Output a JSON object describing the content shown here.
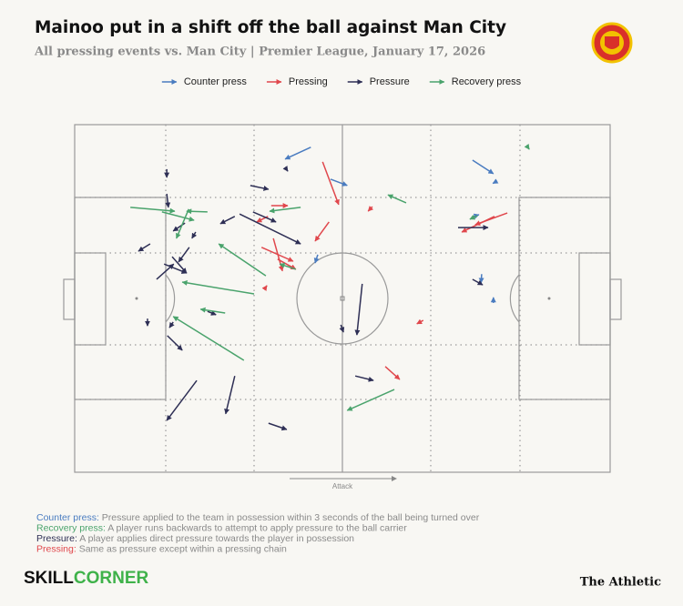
{
  "chart_data": {
    "type": "arrow-map",
    "title": "Mainoo put in a shift off the ball against Man City",
    "subtitle": "All pressing events vs. Man City | Premier League, January 17, 2026",
    "xlim": [
      0,
      100
    ],
    "ylim": [
      0,
      100
    ],
    "attack_label": "Attack",
    "series": [
      {
        "name": "Counter press",
        "color": "#4a7cc0",
        "events": [
          [
            44.1,
            6.5,
            39.3,
            9.9
          ],
          [
            74.3,
            10.2,
            78.2,
            14.1
          ],
          [
            78.9,
            16.2,
            78.1,
            16.9
          ],
          [
            47.8,
            15.7,
            50.9,
            17.5
          ],
          [
            45.4,
            37.4,
            44.9,
            39.8
          ],
          [
            76.0,
            43.0,
            75.9,
            45.5
          ],
          [
            78.2,
            51.3,
            78.2,
            49.7
          ],
          [
            74.5,
            26.4,
            75.5,
            25.9
          ]
        ]
      },
      {
        "name": "Pressing",
        "color": "#e0474c",
        "events": [
          [
            46.3,
            10.7,
            49.3,
            23.0
          ],
          [
            36.7,
            23.3,
            39.8,
            23.3
          ],
          [
            36.1,
            26.4,
            34.0,
            28.0
          ],
          [
            47.5,
            28.0,
            44.9,
            33.5
          ],
          [
            55.6,
            23.6,
            54.8,
            24.9
          ],
          [
            34.9,
            35.3,
            40.8,
            39.3
          ],
          [
            37.1,
            32.7,
            38.8,
            42.1
          ],
          [
            37.9,
            38.7,
            41.3,
            41.6
          ],
          [
            35.4,
            47.4,
            35.9,
            46.3
          ],
          [
            65.1,
            56.3,
            63.9,
            57.3
          ],
          [
            58.0,
            69.6,
            60.7,
            73.3
          ],
          [
            80.8,
            25.4,
            74.8,
            28.8
          ],
          [
            78.4,
            26.4,
            72.3,
            30.9
          ]
        ]
      },
      {
        "name": "Pressure",
        "color": "#2e2f55",
        "events": [
          [
            17.2,
            12.8,
            17.2,
            15.2
          ],
          [
            32.8,
            17.5,
            36.2,
            18.6
          ],
          [
            39.3,
            12.3,
            39.8,
            13.4
          ],
          [
            17.2,
            19.9,
            17.5,
            23.8
          ],
          [
            30.8,
            25.7,
            42.2,
            34.3
          ],
          [
            33.3,
            25.1,
            37.6,
            28.0
          ],
          [
            29.9,
            26.4,
            27.2,
            28.5
          ],
          [
            20.6,
            28.3,
            18.4,
            30.6
          ],
          [
            14.1,
            34.3,
            11.9,
            36.4
          ],
          [
            21.4,
            35.3,
            19.4,
            39.5
          ],
          [
            22.6,
            30.9,
            21.9,
            32.7
          ],
          [
            18.2,
            38.0,
            20.9,
            42.7
          ],
          [
            16.7,
            40.1,
            20.9,
            42.7
          ],
          [
            15.3,
            44.5,
            18.5,
            40.1
          ],
          [
            24.8,
            53.7,
            26.4,
            54.7
          ],
          [
            13.6,
            55.8,
            13.6,
            57.9
          ],
          [
            17.3,
            60.7,
            20.1,
            64.9
          ],
          [
            18.4,
            56.8,
            17.7,
            58.4
          ],
          [
            53.7,
            45.8,
            52.7,
            60.5
          ],
          [
            49.7,
            57.6,
            50.2,
            59.7
          ],
          [
            52.4,
            72.3,
            55.8,
            73.6
          ],
          [
            29.9,
            72.3,
            28.2,
            83.2
          ],
          [
            22.8,
            73.6,
            17.2,
            85.1
          ],
          [
            36.2,
            85.9,
            39.6,
            87.7
          ],
          [
            74.3,
            44.5,
            76.2,
            46.1
          ],
          [
            71.6,
            29.6,
            77.2,
            29.6
          ]
        ]
      },
      {
        "name": "Recovery press",
        "color": "#4aa36c",
        "events": [
          [
            10.4,
            23.8,
            18.7,
            24.9
          ],
          [
            16.3,
            25.1,
            22.3,
            27.5
          ],
          [
            21.3,
            24.3,
            19.0,
            32.7
          ],
          [
            24.8,
            25.1,
            20.9,
            24.9
          ],
          [
            42.2,
            23.8,
            36.4,
            24.9
          ],
          [
            61.9,
            22.5,
            58.5,
            20.2
          ],
          [
            75.2,
            26.2,
            73.8,
            27.2
          ],
          [
            84.4,
            6.0,
            84.9,
            7.1
          ],
          [
            35.7,
            43.5,
            26.9,
            34.3
          ],
          [
            41.3,
            41.6,
            38.3,
            40.1
          ],
          [
            33.5,
            48.7,
            20.1,
            45.3
          ],
          [
            28.1,
            54.2,
            23.5,
            53.1
          ],
          [
            31.6,
            67.8,
            18.4,
            55.2
          ],
          [
            59.7,
            76.2,
            50.9,
            82.2
          ]
        ]
      }
    ],
    "notes": [
      {
        "term": "Counter press:",
        "text": " Pressure applied to the team in possession within 3 seconds of the ball being turned over"
      },
      {
        "term": "Recovery press:",
        "text": " A player runs backwards to attempt to apply pressure to the ball carrier"
      },
      {
        "term": "Pressure:",
        "text": " A player applies direct pressure towards the player in possession"
      },
      {
        "term": "Pressing:",
        "text": " Same as pressure except within a pressing chain"
      }
    ],
    "brand": {
      "skill": "SKILL",
      "corner": "CORNER",
      "publisher": "The Athletic"
    }
  }
}
